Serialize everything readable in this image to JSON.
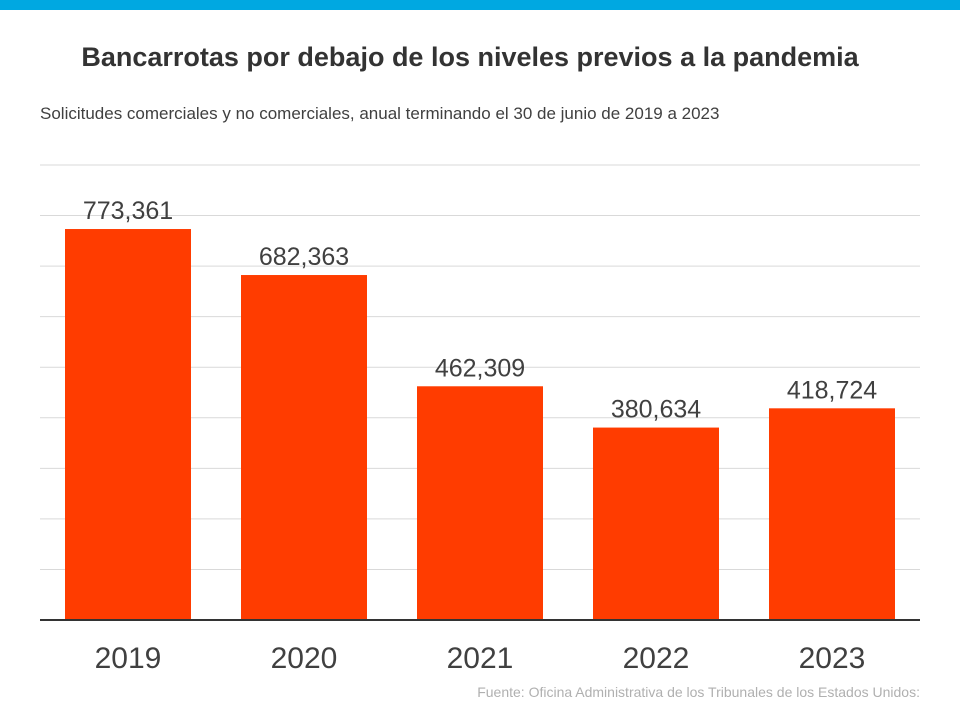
{
  "colors": {
    "accent_bar": "#00a8e1",
    "bar": "#ff3c00",
    "grid": "#d9d9d9",
    "axis": "#333333",
    "text": "#333333",
    "label": "#404040",
    "source": "#b0b0b0"
  },
  "source": "Fuente: Oficina Administrativa de los Tribunales de los Estados Unidos:",
  "chart_data": {
    "type": "bar",
    "title": "Bancarrotas por debajo de los niveles previos a la pandemia",
    "subtitle": "Solicitudes comerciales y no comerciales, anual terminando el 30 de junio de 2019 a 2023",
    "categories": [
      "2019",
      "2020",
      "2021",
      "2022",
      "2023"
    ],
    "values": [
      773361,
      682363,
      462309,
      380634,
      418724
    ],
    "value_labels": [
      "773,361",
      "682,363",
      "462,309",
      "380,634",
      "418,724"
    ],
    "ylim": [
      0,
      900000
    ],
    "grid": true,
    "legend": "none"
  }
}
